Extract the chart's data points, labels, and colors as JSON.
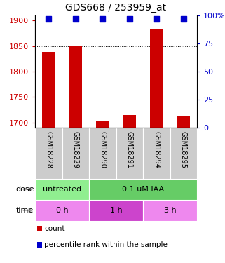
{
  "title": "GDS668 / 253959_at",
  "samples": [
    "GSM18228",
    "GSM18229",
    "GSM18290",
    "GSM18291",
    "GSM18294",
    "GSM18295"
  ],
  "bar_values": [
    1838,
    1849,
    1702,
    1715,
    1884,
    1714
  ],
  "percentile_values": [
    97,
    97,
    97,
    97,
    97,
    97
  ],
  "ylim_left": [
    1690,
    1910
  ],
  "ylim_right": [
    0,
    100
  ],
  "left_ticks": [
    1700,
    1750,
    1800,
    1850,
    1900
  ],
  "right_ticks": [
    0,
    25,
    50,
    75,
    100
  ],
  "right_tick_labels": [
    "0",
    "25",
    "50",
    "75",
    "100%"
  ],
  "grid_lines": [
    1750,
    1800,
    1850
  ],
  "bar_color": "#cc0000",
  "dot_color": "#0000cc",
  "bar_width": 0.5,
  "dot_size": 35,
  "dose_data": [
    {
      "label": "untreated",
      "xmin": 0.5,
      "xmax": 2.5,
      "color": "#90ee90"
    },
    {
      "label": "0.1 uM IAA",
      "xmin": 2.5,
      "xmax": 6.5,
      "color": "#66cc66"
    }
  ],
  "time_data": [
    {
      "label": "0 h",
      "xmin": 0.5,
      "xmax": 2.5,
      "color": "#ee88ee"
    },
    {
      "label": "1 h",
      "xmin": 2.5,
      "xmax": 4.5,
      "color": "#cc44cc"
    },
    {
      "label": "3 h",
      "xmin": 4.5,
      "xmax": 6.5,
      "color": "#ee88ee"
    }
  ],
  "left_tick_color": "#cc0000",
  "right_tick_color": "#0000cc",
  "legend_items": [
    {
      "color": "#cc0000",
      "label": "count"
    },
    {
      "color": "#0000cc",
      "label": "percentile rank within the sample"
    }
  ],
  "title_fontsize": 10,
  "tick_fontsize": 8,
  "sample_label_fontsize": 7,
  "annot_fontsize": 8,
  "legend_fontsize": 7.5,
  "fig_width": 3.21,
  "fig_height": 3.75,
  "sample_box_color": "#cccccc",
  "arrow_color": "#999999"
}
